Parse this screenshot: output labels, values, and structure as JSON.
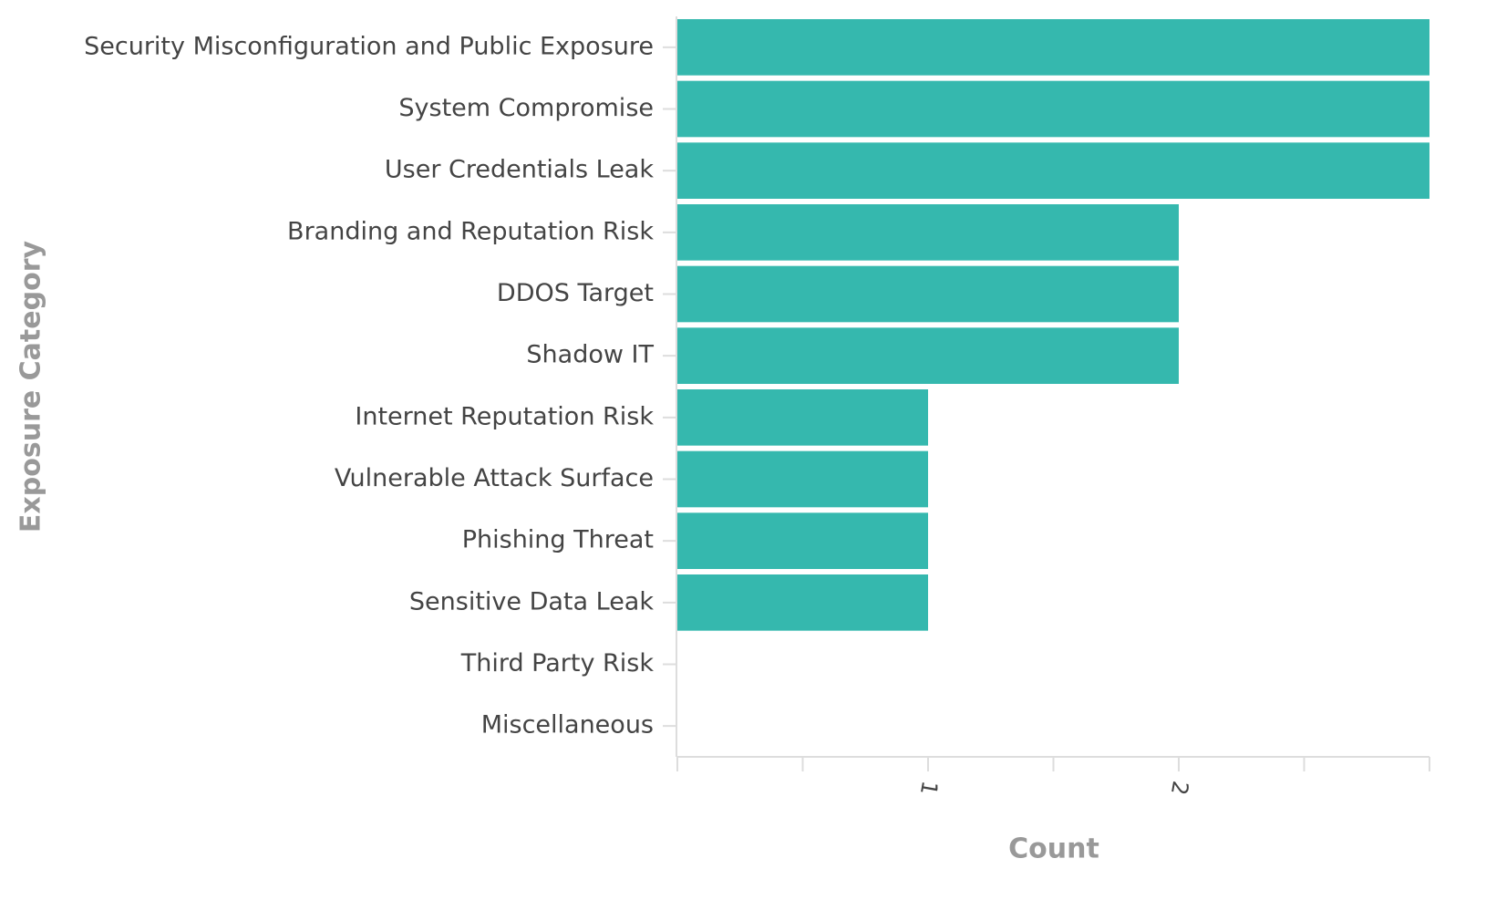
{
  "chart_data": {
    "type": "bar",
    "orientation": "horizontal",
    "categories": [
      "Security Misconfiguration and Public Exposure",
      "System Compromise",
      "User Credentials Leak",
      "Branding and Reputation Risk",
      "DDOS Target",
      "Shadow IT",
      "Internet Reputation Risk",
      "Vulnerable Attack Surface",
      "Phishing Threat",
      "Sensitive Data Leak",
      "Third Party Risk",
      "Miscellaneous"
    ],
    "values": [
      3,
      3,
      3,
      2,
      2,
      2,
      1,
      1,
      1,
      1,
      0,
      0
    ],
    "color": "#35b8ae",
    "xlim": [
      0,
      3
    ],
    "xticks": [
      1,
      2
    ],
    "xminor_ticks": [
      0,
      0.5,
      1.5,
      2.5,
      3
    ],
    "xlabel": "Count",
    "ylabel": "Exposure Category"
  }
}
